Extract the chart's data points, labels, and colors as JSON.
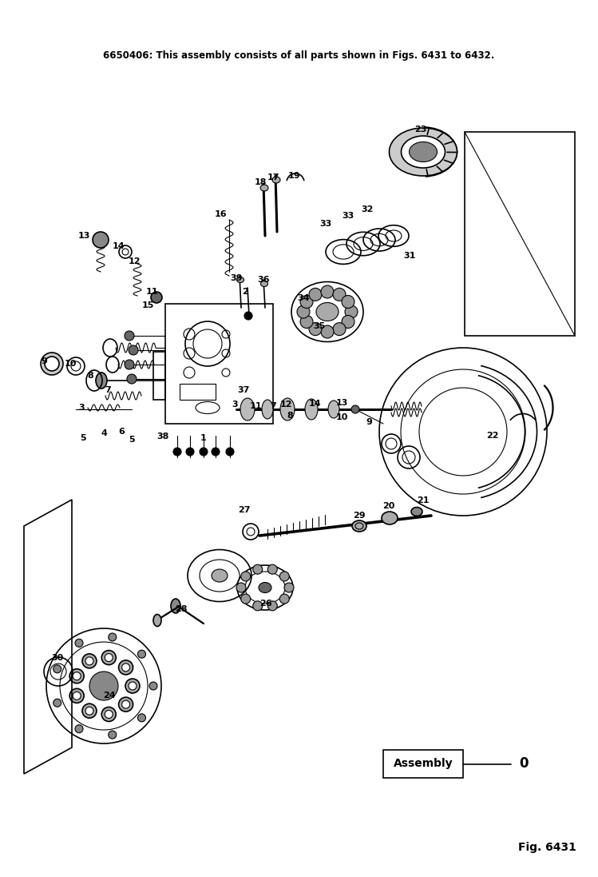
{
  "bg_color": "#ffffff",
  "text_color": "#000000",
  "header_text": "6650406: This assembly consists of all parts shown in Figs. 6431 to 6432.",
  "fig_label": "Fig. 6431",
  "assembly_label": "Assembly",
  "assembly_number": "0",
  "header_fontsize": 8.5,
  "fig_fontsize": 10,
  "assembly_fontsize": 10,
  "figsize": [
    7.49,
    10.97
  ],
  "dpi": 100
}
